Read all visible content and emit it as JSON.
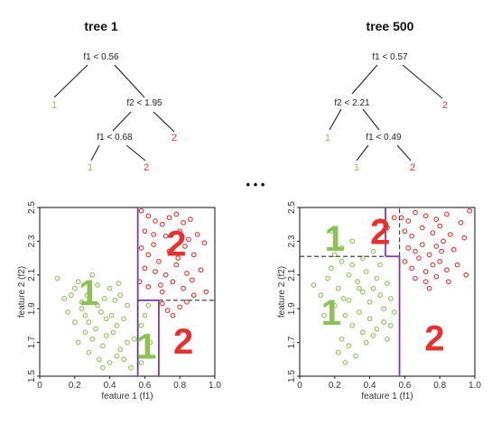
{
  "colors": {
    "class1": "#8dc153",
    "class2": "#e8312f",
    "split": "#7c3aad",
    "text": "#222222",
    "dash": "#444444"
  },
  "ellipsis": "• • •",
  "trees": [
    {
      "title": "tree 1",
      "nodes": [
        {
          "id": "root",
          "label": "f1 < 0.56"
        },
        {
          "id": "n1",
          "label": "f2 < 1.95"
        },
        {
          "id": "n2",
          "label": "f1 < 0.68"
        }
      ],
      "leaves": [
        {
          "id": "l1",
          "label": "1",
          "class": 1
        },
        {
          "id": "l2",
          "label": "2",
          "class": 2
        },
        {
          "id": "l3",
          "label": "1",
          "class": 1
        },
        {
          "id": "l4",
          "label": "2",
          "class": 2
        }
      ]
    },
    {
      "title": "tree 500",
      "nodes": [
        {
          "id": "root",
          "label": "f1 < 0.57"
        },
        {
          "id": "n1",
          "label": "f2 < 2.21"
        },
        {
          "id": "n2",
          "label": "f1 < 0.49"
        }
      ],
      "leaves": [
        {
          "id": "l1",
          "label": "2",
          "class": 2
        },
        {
          "id": "l2",
          "label": "1",
          "class": 1
        },
        {
          "id": "l3",
          "label": "1",
          "class": 1
        },
        {
          "id": "l4",
          "label": "2",
          "class": 2
        }
      ]
    }
  ],
  "plots": [
    {
      "xlabel": "feature 1 (f1)",
      "ylabel": "feature 2 (f2)",
      "xlim": [
        0,
        1
      ],
      "ylim": [
        1.5,
        2.5
      ],
      "xticks": [
        "0",
        "0.2",
        "0.4",
        "0.6",
        "0.8",
        "1.0"
      ],
      "yticks": [
        "1.5",
        "1.7",
        "1.9",
        "2.1",
        "2.3",
        "2.5"
      ],
      "regions": [
        {
          "label": "1",
          "class": 1,
          "at": [
            0.28,
            1.98
          ]
        },
        {
          "label": "2",
          "class": 2,
          "at": [
            0.78,
            2.27
          ]
        },
        {
          "label": "1",
          "class": 1,
          "at": [
            0.61,
            1.66
          ]
        },
        {
          "label": "2",
          "class": 2,
          "at": [
            0.82,
            1.69
          ]
        }
      ],
      "split_lines": [
        {
          "style": "solid",
          "from": [
            0.56,
            1.5
          ],
          "to": [
            0.56,
            2.5
          ]
        },
        {
          "style": "solid",
          "from": [
            0.56,
            1.95
          ],
          "to": [
            0.68,
            1.95
          ]
        },
        {
          "style": "solid",
          "from": [
            0.68,
            1.5
          ],
          "to": [
            0.68,
            1.95
          ]
        },
        {
          "style": "dashed",
          "from": [
            0.68,
            1.95
          ],
          "to": [
            1.0,
            1.95
          ]
        },
        {
          "style": "dashed",
          "from": [
            0.56,
            1.55
          ],
          "to": [
            0.56,
            1.95
          ]
        }
      ],
      "points_class1": [
        [
          0.1,
          2.08
        ],
        [
          0.14,
          1.96
        ],
        [
          0.18,
          1.98
        ],
        [
          0.2,
          2.02
        ],
        [
          0.22,
          2.06
        ],
        [
          0.24,
          1.9
        ],
        [
          0.26,
          1.86
        ],
        [
          0.28,
          1.82
        ],
        [
          0.3,
          2.1
        ],
        [
          0.33,
          1.92
        ],
        [
          0.35,
          1.88
        ],
        [
          0.37,
          1.96
        ],
        [
          0.4,
          2.02
        ],
        [
          0.41,
          1.86
        ],
        [
          0.43,
          1.95
        ],
        [
          0.45,
          2.05
        ],
        [
          0.48,
          1.84
        ],
        [
          0.26,
          1.76
        ],
        [
          0.3,
          1.72
        ],
        [
          0.32,
          1.78
        ],
        [
          0.36,
          1.68
        ],
        [
          0.38,
          1.74
        ],
        [
          0.42,
          1.76
        ],
        [
          0.44,
          1.62
        ],
        [
          0.46,
          1.66
        ],
        [
          0.5,
          1.7
        ],
        [
          0.22,
          1.7
        ],
        [
          0.28,
          1.64
        ],
        [
          0.34,
          1.6
        ],
        [
          0.4,
          1.58
        ],
        [
          0.36,
          1.55
        ],
        [
          0.48,
          1.6
        ],
        [
          0.52,
          1.55
        ],
        [
          0.54,
          1.72
        ],
        [
          0.58,
          1.8
        ],
        [
          0.6,
          1.86
        ],
        [
          0.62,
          1.92
        ],
        [
          0.58,
          1.58
        ],
        [
          0.62,
          1.62
        ],
        [
          0.63,
          1.7
        ],
        [
          0.2,
          1.82
        ],
        [
          0.24,
          1.94
        ],
        [
          0.16,
          1.88
        ],
        [
          0.38,
          1.84
        ],
        [
          0.44,
          1.8
        ],
        [
          0.46,
          1.98
        ],
        [
          0.5,
          1.92
        ],
        [
          0.33,
          2.04
        ],
        [
          0.27,
          1.98
        ]
      ],
      "points_class2": [
        [
          0.58,
          2.48
        ],
        [
          0.62,
          2.45
        ],
        [
          0.66,
          2.42
        ],
        [
          0.7,
          2.4
        ],
        [
          0.74,
          2.44
        ],
        [
          0.78,
          2.46
        ],
        [
          0.82,
          2.41
        ],
        [
          0.86,
          2.43
        ],
        [
          0.6,
          2.36
        ],
        [
          0.65,
          2.34
        ],
        [
          0.72,
          2.33
        ],
        [
          0.8,
          2.36
        ],
        [
          0.85,
          2.31
        ],
        [
          0.9,
          2.34
        ],
        [
          0.94,
          2.29
        ],
        [
          0.58,
          2.26
        ],
        [
          0.62,
          2.22
        ],
        [
          0.68,
          2.18
        ],
        [
          0.74,
          2.24
        ],
        [
          0.79,
          2.2
        ],
        [
          0.88,
          2.22
        ],
        [
          0.6,
          2.14
        ],
        [
          0.66,
          2.12
        ],
        [
          0.72,
          2.1
        ],
        [
          0.78,
          2.16
        ],
        [
          0.84,
          2.11
        ],
        [
          0.92,
          2.13
        ],
        [
          0.57,
          2.06
        ],
        [
          0.62,
          2.03
        ],
        [
          0.69,
          2.04
        ],
        [
          0.76,
          2.06
        ],
        [
          0.82,
          2.02
        ],
        [
          0.87,
          2.07
        ],
        [
          0.7,
          1.93
        ],
        [
          0.73,
          1.89
        ],
        [
          0.76,
          1.86
        ],
        [
          0.8,
          1.91
        ],
        [
          0.84,
          1.94
        ],
        [
          0.88,
          1.98
        ],
        [
          0.95,
          2.0
        ],
        [
          0.7,
          2.0
        ],
        [
          0.65,
          2.28
        ],
        [
          0.83,
          2.27
        ]
      ]
    },
    {
      "xlabel": "feature 1 (f1)",
      "ylabel": "feature 2 (f2)",
      "xlim": [
        0,
        1
      ],
      "ylim": [
        1.5,
        2.5
      ],
      "xticks": [
        "0",
        "0.2",
        "0.4",
        "0.6",
        "0.8",
        "1.0"
      ],
      "yticks": [
        "1.5",
        "1.7",
        "1.9",
        "2.1",
        "2.3",
        "2.5"
      ],
      "regions": [
        {
          "label": "1",
          "class": 1,
          "at": [
            0.2,
            2.3
          ]
        },
        {
          "label": "2",
          "class": 2,
          "at": [
            0.46,
            2.34
          ]
        },
        {
          "label": "1",
          "class": 1,
          "at": [
            0.18,
            1.86
          ]
        },
        {
          "label": "2",
          "class": 2,
          "at": [
            0.77,
            1.71
          ]
        }
      ],
      "split_lines": [
        {
          "style": "solid",
          "from": [
            0.57,
            1.5
          ],
          "to": [
            0.57,
            2.21
          ]
        },
        {
          "style": "solid",
          "from": [
            0.49,
            2.21
          ],
          "to": [
            0.57,
            2.21
          ]
        },
        {
          "style": "solid",
          "from": [
            0.49,
            2.21
          ],
          "to": [
            0.49,
            2.5
          ]
        },
        {
          "style": "dashed",
          "from": [
            0.0,
            2.21
          ],
          "to": [
            0.49,
            2.21
          ]
        },
        {
          "style": "dashed",
          "from": [
            0.57,
            2.21
          ],
          "to": [
            0.57,
            2.5
          ]
        }
      ],
      "points_class1": [
        [
          0.08,
          2.04
        ],
        [
          0.12,
          1.98
        ],
        [
          0.16,
          2.08
        ],
        [
          0.18,
          2.14
        ],
        [
          0.22,
          2.02
        ],
        [
          0.25,
          1.96
        ],
        [
          0.28,
          2.1
        ],
        [
          0.3,
          2.16
        ],
        [
          0.24,
          2.18
        ],
        [
          0.33,
          2.06
        ],
        [
          0.36,
          2.0
        ],
        [
          0.38,
          2.12
        ],
        [
          0.4,
          1.94
        ],
        [
          0.42,
          2.02
        ],
        [
          0.44,
          2.08
        ],
        [
          0.46,
          1.98
        ],
        [
          0.48,
          1.9
        ],
        [
          0.5,
          2.05
        ],
        [
          0.52,
          1.96
        ],
        [
          0.2,
          1.92
        ],
        [
          0.26,
          1.86
        ],
        [
          0.3,
          1.8
        ],
        [
          0.34,
          1.88
        ],
        [
          0.36,
          1.76
        ],
        [
          0.4,
          1.84
        ],
        [
          0.44,
          1.78
        ],
        [
          0.48,
          1.82
        ],
        [
          0.24,
          1.72
        ],
        [
          0.28,
          1.68
        ],
        [
          0.32,
          1.62
        ],
        [
          0.26,
          1.58
        ],
        [
          0.22,
          1.64
        ],
        [
          0.38,
          1.7
        ],
        [
          0.42,
          1.74
        ],
        [
          0.5,
          1.72
        ],
        [
          0.54,
          1.88
        ],
        [
          0.2,
          2.22
        ],
        [
          0.24,
          2.26
        ],
        [
          0.3,
          2.3
        ],
        [
          0.36,
          2.2
        ],
        [
          0.42,
          2.24
        ],
        [
          0.18,
          2.36
        ],
        [
          0.14,
          1.86
        ],
        [
          0.34,
          2.02
        ],
        [
          0.46,
          2.16
        ],
        [
          0.52,
          1.8
        ],
        [
          0.28,
          1.95
        ]
      ],
      "points_class2": [
        [
          0.58,
          2.44
        ],
        [
          0.62,
          2.42
        ],
        [
          0.66,
          2.47
        ],
        [
          0.72,
          2.45
        ],
        [
          0.78,
          2.43
        ],
        [
          0.84,
          2.46
        ],
        [
          0.92,
          2.41
        ],
        [
          0.97,
          2.48
        ],
        [
          0.6,
          2.36
        ],
        [
          0.64,
          2.33
        ],
        [
          0.7,
          2.38
        ],
        [
          0.76,
          2.35
        ],
        [
          0.8,
          2.39
        ],
        [
          0.86,
          2.34
        ],
        [
          0.62,
          2.26
        ],
        [
          0.66,
          2.24
        ],
        [
          0.7,
          2.28
        ],
        [
          0.74,
          2.22
        ],
        [
          0.78,
          2.27
        ],
        [
          0.82,
          2.3
        ],
        [
          0.88,
          2.25
        ],
        [
          0.94,
          2.32
        ],
        [
          0.6,
          2.18
        ],
        [
          0.64,
          2.14
        ],
        [
          0.68,
          2.2
        ],
        [
          0.72,
          2.12
        ],
        [
          0.76,
          2.16
        ],
        [
          0.8,
          2.18
        ],
        [
          0.84,
          2.13
        ],
        [
          0.9,
          2.16
        ],
        [
          0.66,
          2.08
        ],
        [
          0.72,
          2.06
        ],
        [
          0.78,
          2.09
        ],
        [
          0.85,
          2.06
        ],
        [
          0.95,
          2.1
        ],
        [
          0.46,
          2.42
        ],
        [
          0.5,
          2.38
        ],
        [
          0.54,
          2.44
        ],
        [
          0.74,
          2.02
        ],
        [
          0.81,
          2.24
        ]
      ]
    }
  ]
}
